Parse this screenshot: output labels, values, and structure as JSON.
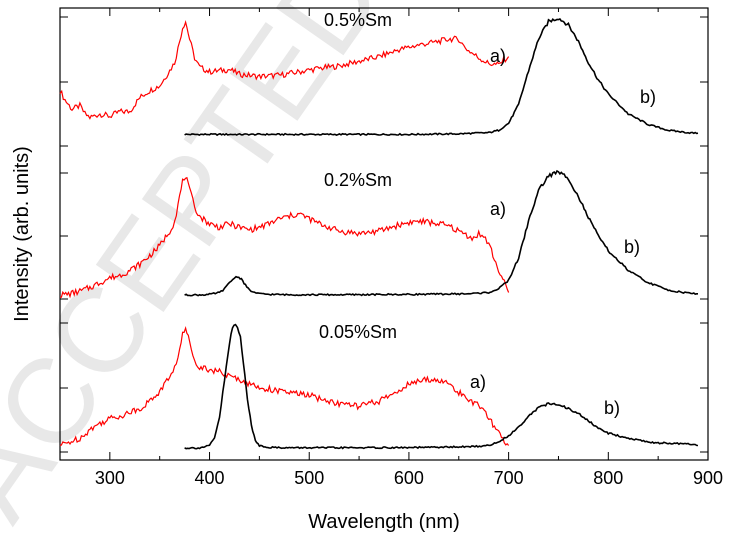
{
  "watermark": "ACCEPTED",
  "chart_data": {
    "type": "line",
    "xlabel": "Wavelength (nm)",
    "ylabel": "Intensity (arb. units)",
    "xlim": [
      250,
      900
    ],
    "x_ticks": [
      300,
      400,
      500,
      600,
      700,
      800,
      900
    ],
    "y_tick_labels_shown": false,
    "grid": false,
    "colors": {
      "a": "#ff0000",
      "b": "#000000"
    },
    "panels": [
      {
        "label": "0.5%Sm",
        "series": [
          {
            "name": "a)",
            "color": "#ff0000",
            "x": [
              250,
              255,
              262,
              270,
              275,
              280,
              290,
              300,
              310,
              320,
              330,
              340,
              350,
              360,
              365,
              370,
              373,
              376,
              380,
              385,
              390,
              400,
              410,
              420,
              430,
              450,
              470,
              490,
              510,
              530,
              550,
              570,
              590,
              610,
              630,
              640,
              650,
              655,
              660,
              670,
              680,
              690,
              695,
              700
            ],
            "y": [
              0.38,
              0.3,
              0.22,
              0.25,
              0.18,
              0.15,
              0.18,
              0.16,
              0.2,
              0.2,
              0.32,
              0.38,
              0.42,
              0.55,
              0.62,
              0.8,
              0.92,
              0.97,
              0.82,
              0.66,
              0.58,
              0.54,
              0.55,
              0.56,
              0.52,
              0.5,
              0.51,
              0.54,
              0.57,
              0.59,
              0.63,
              0.67,
              0.73,
              0.77,
              0.8,
              0.82,
              0.82,
              0.76,
              0.72,
              0.66,
              0.61,
              0.6,
              0.64,
              0.67
            ]
          },
          {
            "name": "b)",
            "color": "#000000",
            "x": [
              375,
              400,
              450,
              500,
              550,
              600,
              650,
              680,
              690,
              700,
              710,
              720,
              730,
              740,
              750,
              760,
              770,
              780,
              790,
              800,
              820,
              840,
              860,
              880,
              890
            ],
            "y": [
              0.005,
              0.005,
              0.005,
              0.005,
              0.005,
              0.005,
              0.01,
              0.02,
              0.04,
              0.1,
              0.26,
              0.55,
              0.82,
              0.97,
              1.0,
              0.94,
              0.8,
              0.62,
              0.47,
              0.35,
              0.18,
              0.09,
              0.04,
              0.02,
              0.015
            ]
          }
        ]
      },
      {
        "label": "0.2%Sm",
        "series": [
          {
            "name": "a)",
            "color": "#ff0000",
            "x": [
              250,
              260,
              270,
              280,
              290,
              300,
              310,
              320,
              330,
              340,
              350,
              360,
              365,
              370,
              373,
              376,
              380,
              385,
              390,
              400,
              410,
              420,
              430,
              440,
              450,
              460,
              470,
              480,
              490,
              500,
              510,
              520,
              530,
              550,
              570,
              590,
              600,
              610,
              620,
              630,
              640,
              650,
              660,
              665,
              670,
              675,
              680,
              690,
              700
            ],
            "y": [
              0.0,
              0.01,
              0.03,
              0.06,
              0.1,
              0.14,
              0.16,
              0.2,
              0.25,
              0.32,
              0.4,
              0.52,
              0.6,
              0.8,
              0.92,
              0.97,
              0.85,
              0.72,
              0.64,
              0.58,
              0.55,
              0.58,
              0.55,
              0.53,
              0.55,
              0.58,
              0.62,
              0.64,
              0.66,
              0.62,
              0.58,
              0.55,
              0.52,
              0.5,
              0.52,
              0.57,
              0.59,
              0.6,
              0.59,
              0.58,
              0.56,
              0.52,
              0.48,
              0.46,
              0.5,
              0.47,
              0.42,
              0.2,
              0.02
            ]
          },
          {
            "name": "b)",
            "color": "#000000",
            "x": [
              375,
              390,
              400,
              410,
              415,
              420,
              425,
              428,
              432,
              436,
              440,
              445,
              450,
              460,
              480,
              520,
              560,
              600,
              640,
              660,
              680,
              690,
              700,
              710,
              720,
              730,
              740,
              750,
              760,
              770,
              780,
              790,
              800,
              820,
              840,
              860,
              880,
              890
            ],
            "y": [
              0.0,
              0.0,
              0.005,
              0.02,
              0.05,
              0.1,
              0.14,
              0.15,
              0.13,
              0.08,
              0.04,
              0.02,
              0.01,
              0.005,
              0.002,
              0.002,
              0.003,
              0.005,
              0.008,
              0.01,
              0.02,
              0.05,
              0.12,
              0.3,
              0.6,
              0.85,
              0.97,
              1.0,
              0.95,
              0.8,
              0.63,
              0.48,
              0.36,
              0.2,
              0.1,
              0.04,
              0.015,
              0.01
            ]
          }
        ]
      },
      {
        "label": "0.05%Sm",
        "series": [
          {
            "name": "a)",
            "color": "#ff0000",
            "x": [
              250,
              260,
              270,
              280,
              290,
              300,
              310,
              320,
              330,
              340,
              350,
              360,
              365,
              370,
              373,
              376,
              380,
              385,
              390,
              400,
              410,
              420,
              430,
              440,
              450,
              460,
              470,
              480,
              490,
              500,
              510,
              520,
              530,
              540,
              550,
              560,
              570,
              580,
              590,
              600,
              610,
              620,
              630,
              640,
              650,
              660,
              670,
              680,
              690,
              700
            ],
            "y": [
              0.02,
              0.05,
              0.08,
              0.15,
              0.2,
              0.24,
              0.26,
              0.29,
              0.32,
              0.38,
              0.46,
              0.58,
              0.65,
              0.8,
              0.92,
              0.97,
              0.86,
              0.72,
              0.66,
              0.64,
              0.62,
              0.58,
              0.56,
              0.52,
              0.49,
              0.48,
              0.46,
              0.45,
              0.44,
              0.43,
              0.4,
              0.38,
              0.36,
              0.35,
              0.34,
              0.36,
              0.38,
              0.42,
              0.47,
              0.52,
              0.54,
              0.56,
              0.55,
              0.52,
              0.45,
              0.4,
              0.34,
              0.25,
              0.12,
              0.02
            ]
          },
          {
            "name": "b)",
            "color": "#000000",
            "x": [
              375,
              390,
              400,
              405,
              410,
              415,
              420,
              423,
              426,
              428,
              431,
              434,
              438,
              442,
              446,
              450,
              460,
              480,
              520,
              600,
              660,
              680,
              690,
              700,
              710,
              720,
              730,
              740,
              750,
              760,
              770,
              780,
              790,
              800,
              820,
              840,
              850,
              860,
              880,
              890
            ],
            "y": [
              0.0,
              0.0,
              0.02,
              0.08,
              0.25,
              0.55,
              0.85,
              0.98,
              1.0,
              0.98,
              0.9,
              0.7,
              0.4,
              0.18,
              0.06,
              0.02,
              0.005,
              0.002,
              0.002,
              0.003,
              0.01,
              0.02,
              0.05,
              0.1,
              0.17,
              0.26,
              0.33,
              0.36,
              0.35,
              0.32,
              0.28,
              0.22,
              0.16,
              0.12,
              0.08,
              0.05,
              0.04,
              0.04,
              0.03,
              0.02
            ]
          }
        ]
      }
    ]
  }
}
